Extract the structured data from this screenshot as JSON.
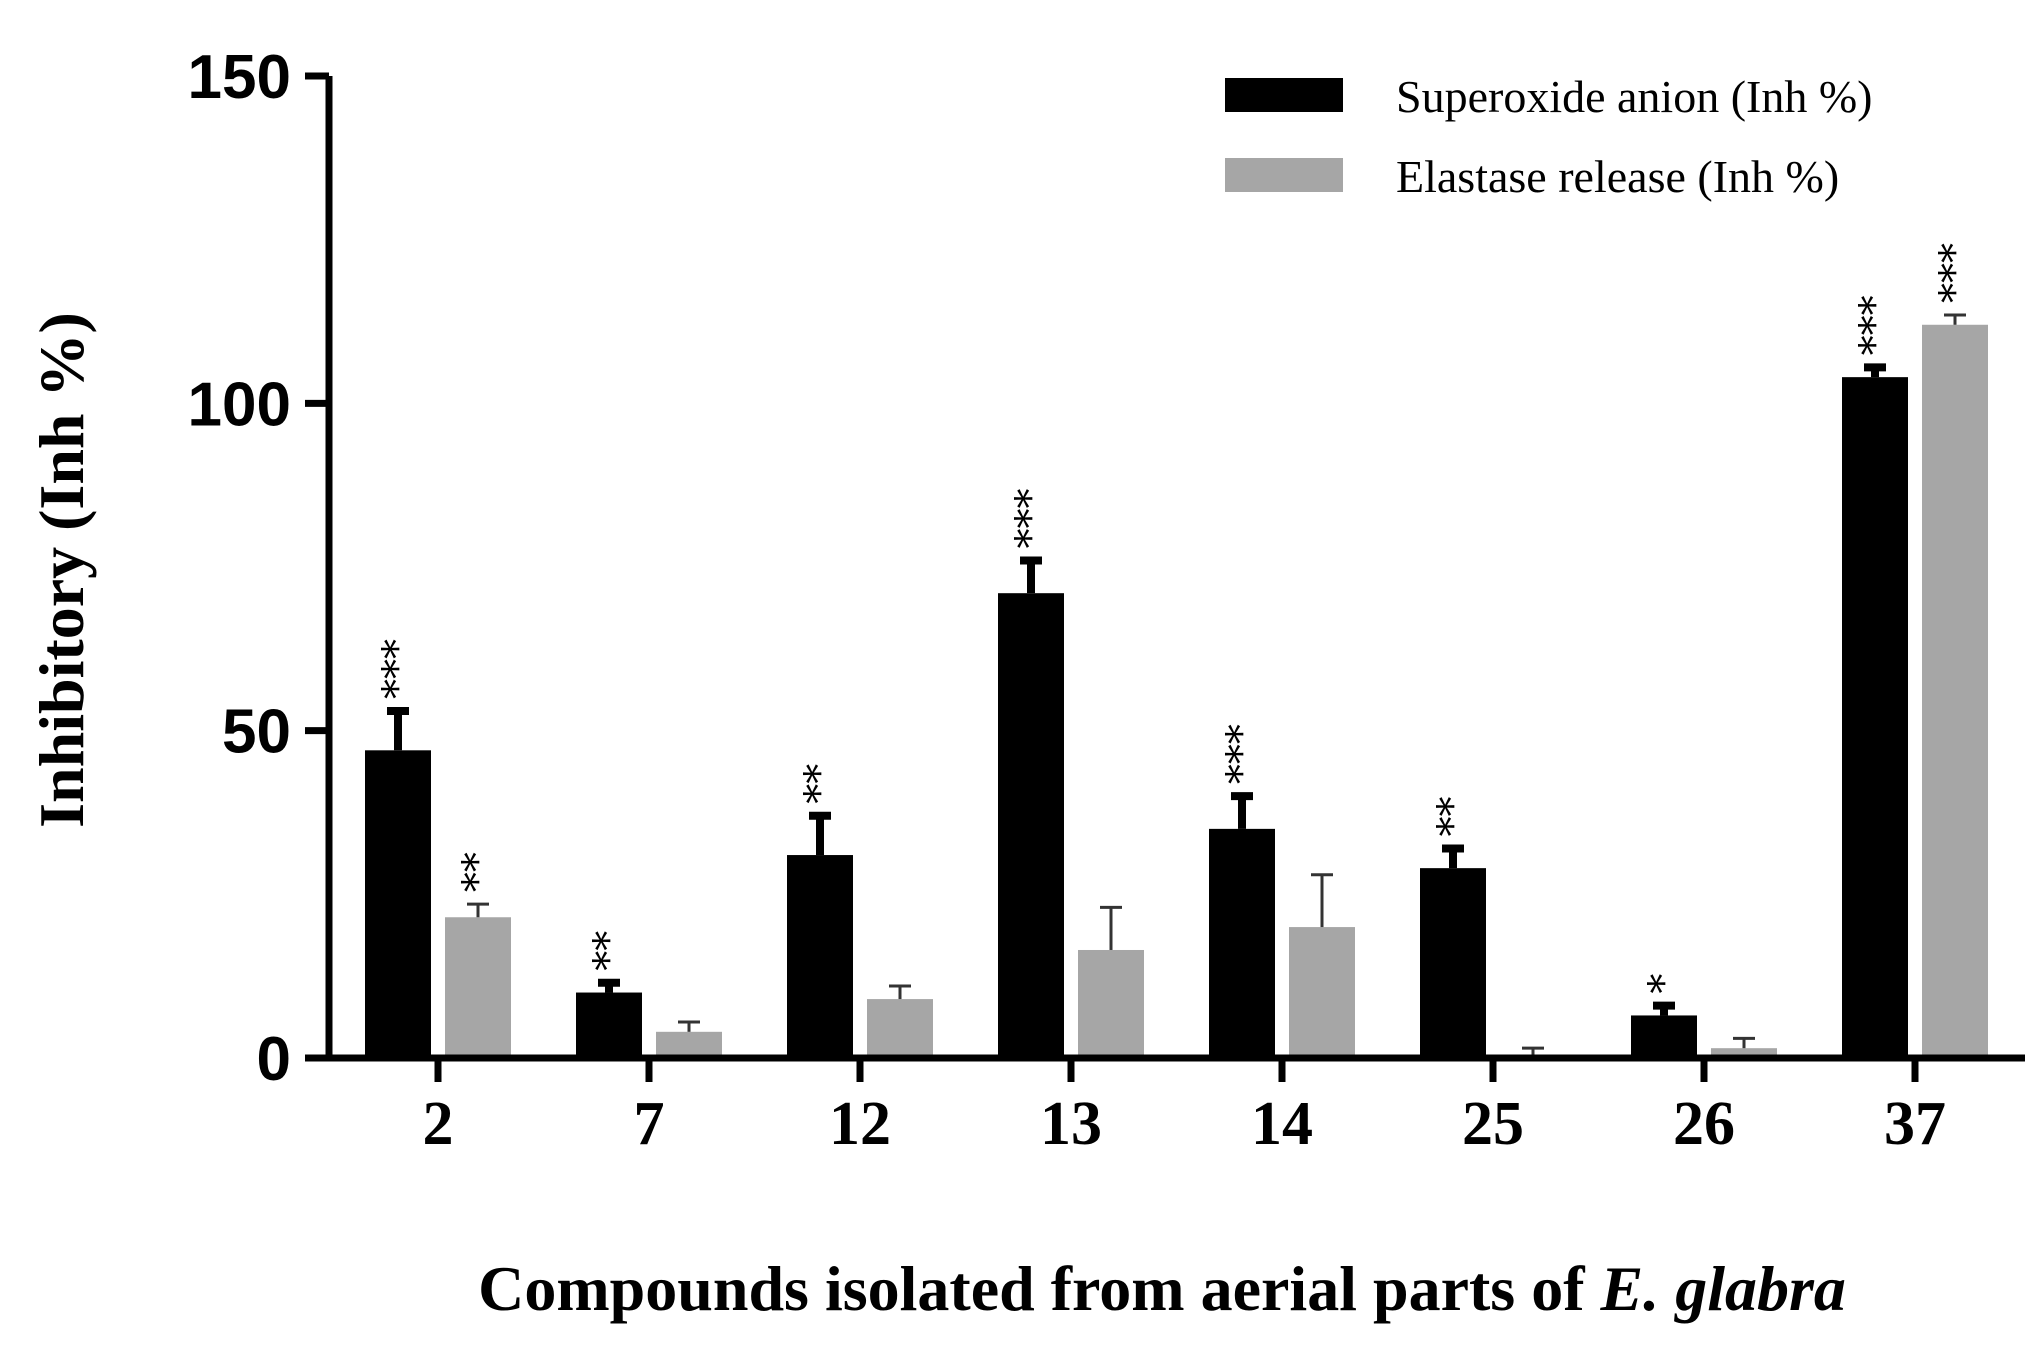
{
  "chart_data": {
    "type": "bar",
    "xlabel_prefix": "Compounds isolated from aerial parts of ",
    "xlabel_italic": "E. glabra",
    "ylabel": "Inhibitory (Inh %)",
    "ylim": [
      0,
      150
    ],
    "yticks": [
      "0",
      "50",
      "100",
      "150"
    ],
    "categories": [
      "2",
      "7",
      "12",
      "13",
      "14",
      "25",
      "26",
      "37"
    ],
    "legend_position": "top-right",
    "series": [
      {
        "name": "Superoxide anion (Inh %)",
        "color": "#000000",
        "values": [
          47,
          10,
          31,
          71,
          35,
          29,
          6.5,
          104
        ],
        "errors": [
          6,
          1.5,
          6,
          5,
          5,
          3,
          1.5,
          1.5
        ],
        "significance": [
          "***",
          "**",
          "**",
          "***",
          "***",
          "**",
          "*",
          "***"
        ]
      },
      {
        "name": "Elastase release (Inh %)",
        "color": "#a6a6a6",
        "values": [
          21.5,
          4,
          9,
          16.5,
          20,
          0.5,
          1.5,
          112
        ],
        "errors": [
          2,
          1.5,
          2,
          6.5,
          8,
          1,
          1.5,
          1.5
        ],
        "significance": [
          "**",
          "",
          "",
          "",
          "",
          "",
          "",
          "***"
        ]
      }
    ]
  }
}
